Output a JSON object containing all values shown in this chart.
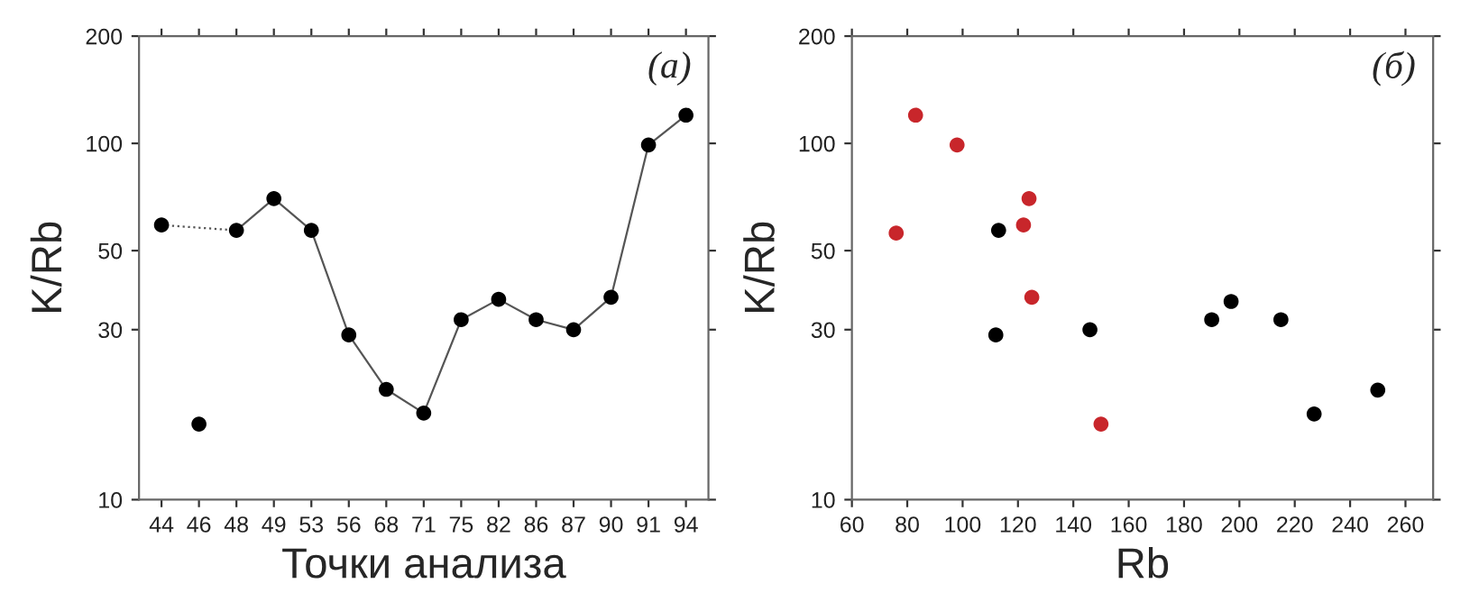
{
  "chart_data": [
    {
      "type": "line",
      "xlabel": "Точки анализа",
      "ylabel": "K/Rb",
      "annotations": [
        "(a)"
      ],
      "log": "y",
      "ylim": [
        10,
        200
      ],
      "yticks": [
        10,
        30,
        50,
        100,
        200
      ],
      "grid": false,
      "marker": "circle",
      "categories": [
        "44",
        "46",
        "48",
        "49",
        "53",
        "56",
        "68",
        "71",
        "75",
        "82",
        "86",
        "87",
        "90",
        "91",
        "94"
      ],
      "series": [
        {
          "type": "line",
          "line_style": "dotted",
          "marker": "none",
          "color": "#555555",
          "x": [
            "44",
            "48"
          ],
          "values": [
            59,
            57
          ]
        },
        {
          "type": "line",
          "line_style": "solid",
          "marker": "none",
          "color": "#555555",
          "x": [
            "48",
            "49",
            "53",
            "56",
            "68",
            "71",
            "75",
            "82",
            "86",
            "87",
            "90",
            "91",
            "94"
          ],
          "values": [
            57,
            70,
            57,
            29,
            20.4,
            17.5,
            32,
            36.5,
            32,
            30,
            37,
            99,
            120
          ]
        },
        {
          "type": "scatter",
          "color": "#000000",
          "values": [
            59,
            16.3,
            57,
            70,
            57,
            29,
            20.4,
            17.5,
            32,
            36.5,
            32,
            30,
            37,
            99,
            120
          ]
        }
      ]
    },
    {
      "type": "scatter",
      "xlabel": "Rb",
      "ylabel": "K/Rb",
      "annotations": [
        "(б)"
      ],
      "log": "y",
      "ylim": [
        10,
        200
      ],
      "yticks": [
        10,
        30,
        50,
        100,
        200
      ],
      "xlim": [
        60,
        270
      ],
      "xticks": [
        60,
        80,
        100,
        120,
        140,
        160,
        180,
        200,
        220,
        240,
        260
      ],
      "grid": false,
      "marker": "circle",
      "series": [
        {
          "color": "#c8262b",
          "x": [
            83,
            98,
            124,
            122,
            76,
            125,
            150
          ],
          "values": [
            120,
            99,
            70,
            59,
            56,
            37,
            16.3
          ]
        },
        {
          "color": "#000000",
          "x": [
            113,
            112,
            146,
            190,
            197,
            215,
            227,
            250
          ],
          "values": [
            57,
            29,
            30,
            32,
            36,
            32,
            17.4,
            20.3
          ]
        }
      ]
    }
  ]
}
